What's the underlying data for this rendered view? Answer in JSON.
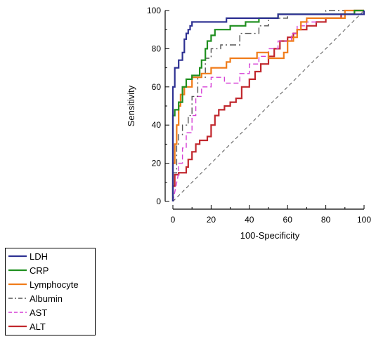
{
  "chart_data": {
    "type": "line",
    "title": "",
    "xlabel": "100-Specificity",
    "ylabel": "Sensitivity",
    "xlim": [
      0,
      100
    ],
    "ylim": [
      0,
      100
    ],
    "x_ticks": [
      "0",
      "20",
      "40",
      "60",
      "80",
      "100"
    ],
    "y_ticks": [
      "0",
      "20",
      "40",
      "60",
      "80",
      "100"
    ],
    "grid": false,
    "legend_position": "bottom-left, outside",
    "reference_line": {
      "from": [
        0,
        0
      ],
      "to": [
        100,
        100
      ],
      "style": "dashed",
      "color": "#555555"
    },
    "series": [
      {
        "name": "LDH",
        "color": "#2e3192",
        "dash": "solid",
        "points": [
          [
            0,
            0
          ],
          [
            0,
            25
          ],
          [
            0,
            45
          ],
          [
            0,
            60
          ],
          [
            1,
            60
          ],
          [
            1,
            70
          ],
          [
            3,
            70
          ],
          [
            3,
            74
          ],
          [
            5,
            74
          ],
          [
            5,
            78
          ],
          [
            6,
            78
          ],
          [
            6,
            85
          ],
          [
            7,
            85
          ],
          [
            7,
            88
          ],
          [
            8,
            88
          ],
          [
            8,
            90
          ],
          [
            9,
            90
          ],
          [
            9,
            92
          ],
          [
            10,
            92
          ],
          [
            10,
            94
          ],
          [
            28,
            94
          ],
          [
            28,
            96
          ],
          [
            55,
            96
          ],
          [
            55,
            98
          ],
          [
            100,
            98
          ],
          [
            100,
            100
          ]
        ]
      },
      {
        "name": "CRP",
        "color": "#1f8f1f",
        "dash": "solid",
        "points": [
          [
            0,
            0
          ],
          [
            0,
            20
          ],
          [
            0,
            35
          ],
          [
            0,
            45
          ],
          [
            1,
            45
          ],
          [
            1,
            48
          ],
          [
            3,
            48
          ],
          [
            3,
            52
          ],
          [
            5,
            52
          ],
          [
            5,
            60
          ],
          [
            7,
            60
          ],
          [
            7,
            64
          ],
          [
            10,
            64
          ],
          [
            10,
            66
          ],
          [
            14,
            66
          ],
          [
            14,
            70
          ],
          [
            15,
            70
          ],
          [
            15,
            74
          ],
          [
            17,
            74
          ],
          [
            17,
            80
          ],
          [
            18,
            80
          ],
          [
            18,
            84
          ],
          [
            20,
            84
          ],
          [
            20,
            87
          ],
          [
            22,
            87
          ],
          [
            22,
            90
          ],
          [
            30,
            90
          ],
          [
            30,
            92
          ],
          [
            38,
            92
          ],
          [
            38,
            94
          ],
          [
            45,
            94
          ],
          [
            45,
            96
          ],
          [
            55,
            96
          ],
          [
            55,
            98
          ],
          [
            95,
            98
          ],
          [
            95,
            100
          ],
          [
            100,
            100
          ]
        ]
      },
      {
        "name": "Lymphocyte",
        "color": "#f07c1a",
        "dash": "solid",
        "points": [
          [
            0,
            0
          ],
          [
            0,
            10
          ],
          [
            0,
            20
          ],
          [
            1,
            20
          ],
          [
            1,
            30
          ],
          [
            2,
            30
          ],
          [
            2,
            40
          ],
          [
            3,
            40
          ],
          [
            3,
            50
          ],
          [
            4,
            50
          ],
          [
            4,
            56
          ],
          [
            6,
            56
          ],
          [
            6,
            60
          ],
          [
            10,
            60
          ],
          [
            10,
            65
          ],
          [
            15,
            65
          ],
          [
            15,
            67
          ],
          [
            20,
            67
          ],
          [
            20,
            70
          ],
          [
            28,
            70
          ],
          [
            28,
            73
          ],
          [
            30,
            73
          ],
          [
            30,
            75
          ],
          [
            44,
            75
          ],
          [
            44,
            78
          ],
          [
            50,
            78
          ],
          [
            50,
            75
          ],
          [
            58,
            75
          ],
          [
            58,
            78
          ],
          [
            60,
            78
          ],
          [
            60,
            84
          ],
          [
            63,
            84
          ],
          [
            63,
            86
          ],
          [
            65,
            86
          ],
          [
            65,
            90
          ],
          [
            67,
            90
          ],
          [
            67,
            94
          ],
          [
            70,
            94
          ],
          [
            70,
            96
          ],
          [
            90,
            96
          ],
          [
            90,
            100
          ],
          [
            100,
            100
          ]
        ]
      },
      {
        "name": "Albumin",
        "color": "#555555",
        "dash": "9,4,2,4",
        "points": [
          [
            0,
            0
          ],
          [
            0,
            15
          ],
          [
            2,
            15
          ],
          [
            2,
            30
          ],
          [
            3,
            30
          ],
          [
            3,
            35
          ],
          [
            5,
            35
          ],
          [
            5,
            40
          ],
          [
            8,
            40
          ],
          [
            8,
            45
          ],
          [
            10,
            45
          ],
          [
            10,
            55
          ],
          [
            13,
            55
          ],
          [
            13,
            65
          ],
          [
            17,
            65
          ],
          [
            17,
            75
          ],
          [
            20,
            75
          ],
          [
            20,
            80
          ],
          [
            25,
            80
          ],
          [
            25,
            82
          ],
          [
            35,
            82
          ],
          [
            35,
            88
          ],
          [
            45,
            88
          ],
          [
            45,
            92
          ],
          [
            50,
            92
          ],
          [
            50,
            96
          ],
          [
            60,
            96
          ],
          [
            60,
            98
          ],
          [
            80,
            98
          ],
          [
            80,
            100
          ],
          [
            100,
            100
          ]
        ]
      },
      {
        "name": "AST",
        "color": "#d63fd6",
        "dash": "7,4",
        "points": [
          [
            0,
            0
          ],
          [
            3,
            15
          ],
          [
            3,
            20
          ],
          [
            5,
            20
          ],
          [
            5,
            28
          ],
          [
            7,
            28
          ],
          [
            7,
            36
          ],
          [
            10,
            36
          ],
          [
            10,
            45
          ],
          [
            12,
            45
          ],
          [
            12,
            55
          ],
          [
            15,
            55
          ],
          [
            15,
            60
          ],
          [
            20,
            60
          ],
          [
            20,
            65
          ],
          [
            27,
            65
          ],
          [
            27,
            62
          ],
          [
            35,
            62
          ],
          [
            35,
            67
          ],
          [
            40,
            67
          ],
          [
            40,
            72
          ],
          [
            45,
            72
          ],
          [
            45,
            76
          ],
          [
            50,
            76
          ],
          [
            50,
            80
          ],
          [
            55,
            80
          ],
          [
            55,
            84
          ],
          [
            62,
            84
          ],
          [
            62,
            88
          ],
          [
            65,
            88
          ],
          [
            65,
            92
          ],
          [
            70,
            92
          ],
          [
            70,
            94
          ],
          [
            75,
            94
          ],
          [
            75,
            96
          ],
          [
            85,
            96
          ],
          [
            85,
            98
          ],
          [
            100,
            98
          ],
          [
            100,
            100
          ]
        ]
      },
      {
        "name": "ALT",
        "color": "#c1272d",
        "dash": "solid",
        "points": [
          [
            0,
            0
          ],
          [
            0,
            8
          ],
          [
            1,
            8
          ],
          [
            1,
            14
          ],
          [
            3,
            14
          ],
          [
            3,
            15
          ],
          [
            7,
            15
          ],
          [
            7,
            18
          ],
          [
            8,
            18
          ],
          [
            8,
            22
          ],
          [
            10,
            22
          ],
          [
            10,
            26
          ],
          [
            12,
            26
          ],
          [
            12,
            30
          ],
          [
            14,
            30
          ],
          [
            14,
            32
          ],
          [
            18,
            32
          ],
          [
            18,
            34
          ],
          [
            20,
            34
          ],
          [
            20,
            40
          ],
          [
            22,
            40
          ],
          [
            22,
            45
          ],
          [
            24,
            45
          ],
          [
            24,
            48
          ],
          [
            27,
            48
          ],
          [
            27,
            50
          ],
          [
            30,
            50
          ],
          [
            30,
            52
          ],
          [
            33,
            52
          ],
          [
            33,
            54
          ],
          [
            36,
            54
          ],
          [
            36,
            60
          ],
          [
            40,
            60
          ],
          [
            40,
            64
          ],
          [
            43,
            64
          ],
          [
            43,
            68
          ],
          [
            46,
            68
          ],
          [
            46,
            72
          ],
          [
            50,
            72
          ],
          [
            50,
            76
          ],
          [
            53,
            76
          ],
          [
            53,
            80
          ],
          [
            56,
            80
          ],
          [
            56,
            84
          ],
          [
            60,
            84
          ],
          [
            60,
            86
          ],
          [
            63,
            86
          ],
          [
            63,
            88
          ],
          [
            65,
            88
          ],
          [
            65,
            90
          ],
          [
            70,
            90
          ],
          [
            70,
            92
          ],
          [
            75,
            92
          ],
          [
            75,
            94
          ],
          [
            80,
            94
          ],
          [
            80,
            96
          ],
          [
            88,
            96
          ],
          [
            88,
            98
          ],
          [
            95,
            98
          ],
          [
            95,
            100
          ],
          [
            100,
            100
          ]
        ]
      }
    ]
  }
}
